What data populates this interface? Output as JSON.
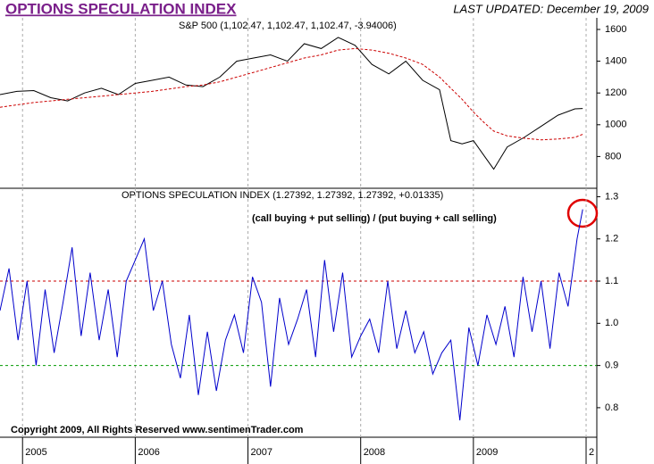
{
  "header": {
    "title": "OPTIONS SPECULATION INDEX",
    "last_updated": "LAST UPDATED:  December 19, 2009"
  },
  "chart_data": [
    {
      "type": "line",
      "title": "S&P 500 (1,102.47, 1,102.47, 1,102.47, -3.94006)",
      "x": [
        2004.8,
        2004.95,
        2005.1,
        2005.25,
        2005.4,
        2005.55,
        2005.7,
        2005.85,
        2006.0,
        2006.15,
        2006.3,
        2006.45,
        2006.6,
        2006.75,
        2006.9,
        2007.05,
        2007.2,
        2007.35,
        2007.5,
        2007.65,
        2007.8,
        2007.95,
        2008.1,
        2008.25,
        2008.4,
        2008.55,
        2008.7,
        2008.8,
        2008.9,
        2009.0,
        2009.1,
        2009.18,
        2009.3,
        2009.45,
        2009.6,
        2009.75,
        2009.9,
        2009.97
      ],
      "series": [
        {
          "color": "#000000",
          "style": "solid",
          "values": [
            1190,
            1210,
            1215,
            1170,
            1150,
            1200,
            1230,
            1190,
            1260,
            1280,
            1300,
            1250,
            1240,
            1300,
            1400,
            1420,
            1440,
            1400,
            1510,
            1480,
            1550,
            1500,
            1380,
            1320,
            1400,
            1280,
            1220,
            900,
            880,
            900,
            800,
            720,
            860,
            920,
            990,
            1060,
            1100,
            1102
          ]
        },
        {
          "color": "#cc0000",
          "style": "dashed",
          "values": [
            1110,
            1125,
            1140,
            1150,
            1160,
            1170,
            1180,
            1190,
            1200,
            1210,
            1225,
            1240,
            1250,
            1270,
            1300,
            1330,
            1360,
            1390,
            1420,
            1440,
            1470,
            1480,
            1470,
            1450,
            1420,
            1380,
            1300,
            1230,
            1160,
            1080,
            1010,
            960,
            930,
            915,
            905,
            910,
            920,
            940
          ]
        }
      ],
      "xlim": [
        2004.8,
        2010.095
      ],
      "ylim": [
        600,
        1673
      ],
      "yticks": [
        800,
        1000,
        1200,
        1400,
        1600
      ],
      "grid": true
    },
    {
      "type": "line",
      "title": "OPTIONS SPECULATION INDEX (1.27392, 1.27392, 1.27392, +0.01335)",
      "annotation": "(call buying + put selling) / (put buying + call selling)",
      "footer": "Copyright 2009, All Rights Reserved  www.sentimenTrader.com",
      "x": [
        2004.8,
        2004.88,
        2004.96,
        2005.04,
        2005.12,
        2005.2,
        2005.28,
        2005.36,
        2005.44,
        2005.52,
        2005.6,
        2005.68,
        2005.76,
        2005.84,
        2005.92,
        2006.0,
        2006.08,
        2006.16,
        2006.24,
        2006.32,
        2006.4,
        2006.48,
        2006.56,
        2006.64,
        2006.72,
        2006.8,
        2006.88,
        2006.96,
        2007.04,
        2007.12,
        2007.2,
        2007.28,
        2007.36,
        2007.44,
        2007.52,
        2007.6,
        2007.68,
        2007.76,
        2007.84,
        2007.92,
        2008.0,
        2008.08,
        2008.16,
        2008.24,
        2008.32,
        2008.4,
        2008.48,
        2008.56,
        2008.64,
        2008.72,
        2008.8,
        2008.88,
        2008.96,
        2009.04,
        2009.12,
        2009.2,
        2009.28,
        2009.36,
        2009.44,
        2009.52,
        2009.6,
        2009.68,
        2009.76,
        2009.84,
        2009.92,
        2009.97
      ],
      "series": [
        {
          "color": "#0000cc",
          "style": "solid",
          "values": [
            1.03,
            1.13,
            0.96,
            1.1,
            0.9,
            1.08,
            0.93,
            1.05,
            1.18,
            0.97,
            1.12,
            0.96,
            1.08,
            0.92,
            1.1,
            1.15,
            1.2,
            1.03,
            1.1,
            0.95,
            0.87,
            1.02,
            0.83,
            0.98,
            0.84,
            0.96,
            1.02,
            0.93,
            1.11,
            1.05,
            0.85,
            1.06,
            0.95,
            1.01,
            1.08,
            0.92,
            1.15,
            0.98,
            1.12,
            0.92,
            0.97,
            1.01,
            0.93,
            1.1,
            0.94,
            1.03,
            0.93,
            0.98,
            0.88,
            0.93,
            0.96,
            0.77,
            0.99,
            0.9,
            1.02,
            0.95,
            1.04,
            0.92,
            1.11,
            0.98,
            1.1,
            0.94,
            1.12,
            1.04,
            1.2,
            1.27
          ]
        }
      ],
      "hlines": [
        {
          "value": 1.1,
          "color": "#cc0000"
        },
        {
          "value": 0.9,
          "color": "#009900"
        }
      ],
      "xlim": [
        2004.8,
        2010.095
      ],
      "ylim": [
        0.73,
        1.32
      ],
      "yticks": [
        0.8,
        0.9,
        {
          "value": 1,
          "label": "1.0"
        },
        1.1,
        1.2,
        1.3
      ],
      "xticks": [
        2005,
        2006,
        2007,
        2008,
        2009,
        {
          "value": 2010,
          "label": "2"
        }
      ],
      "grid": true
    }
  ]
}
